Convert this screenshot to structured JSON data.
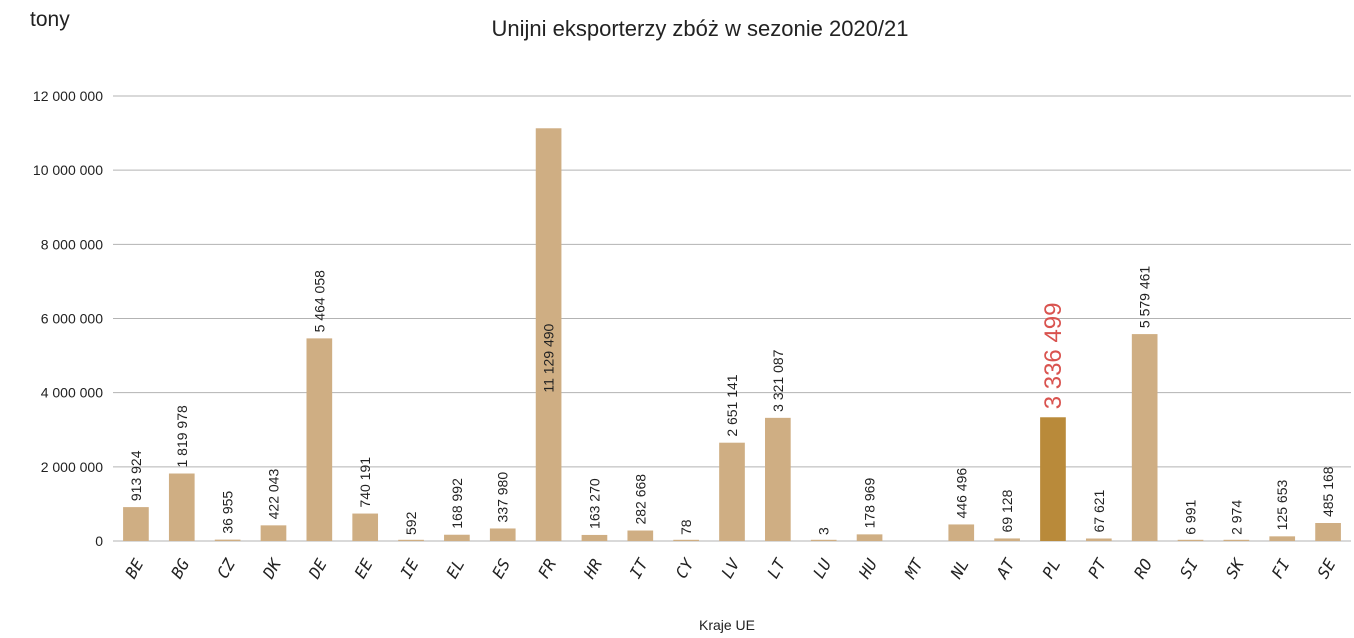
{
  "chart_data": {
    "type": "bar",
    "title": "Unijni eksporterzy zbóż w sezonie 2020/21",
    "unit_label": "tony",
    "xlabel": "Kraje UE",
    "ylabel": "",
    "ylim": [
      0,
      12000000
    ],
    "yticks": [
      0,
      2000000,
      4000000,
      6000000,
      8000000,
      10000000,
      12000000
    ],
    "ytick_labels": [
      "0",
      "2 000 000",
      "4 000 000",
      "6 000 000",
      "8 000 000",
      "10 000 000",
      "12 000 000"
    ],
    "grid": true,
    "bar_color": "#cfae83",
    "highlight_color": "#b98a3a",
    "highlight_label_color": "#d9534f",
    "highlight_category": "PL",
    "categories": [
      "BE",
      "BG",
      "CZ",
      "DK",
      "DE",
      "EE",
      "IE",
      "EL",
      "ES",
      "FR",
      "HR",
      "IT",
      "CY",
      "LV",
      "LT",
      "LU",
      "HU",
      "MT",
      "NL",
      "AT",
      "PL",
      "PT",
      "RO",
      "SI",
      "SK",
      "FI",
      "SE"
    ],
    "values": [
      913924,
      1819978,
      36955,
      422043,
      5464058,
      740191,
      592,
      168992,
      337980,
      11129490,
      163270,
      282668,
      78,
      2651141,
      3321087,
      3,
      178969,
      0,
      446496,
      69128,
      3336499,
      67621,
      5579461,
      6991,
      2974,
      125653,
      485168
    ],
    "data_labels": [
      "913 924",
      "1 819 978",
      "36 955",
      "422 043",
      "5 464 058",
      "740 191",
      "592",
      "168 992",
      "337 980",
      "11 129 490",
      "163 270",
      "282 668",
      "78",
      "2 651 141",
      "3 321 087",
      "3",
      "178 969",
      "",
      "446 496",
      "69 128",
      "3 336 499",
      "67 621",
      "5 579 461",
      "6 991",
      "2 974",
      "125 653",
      "485 168"
    ]
  }
}
